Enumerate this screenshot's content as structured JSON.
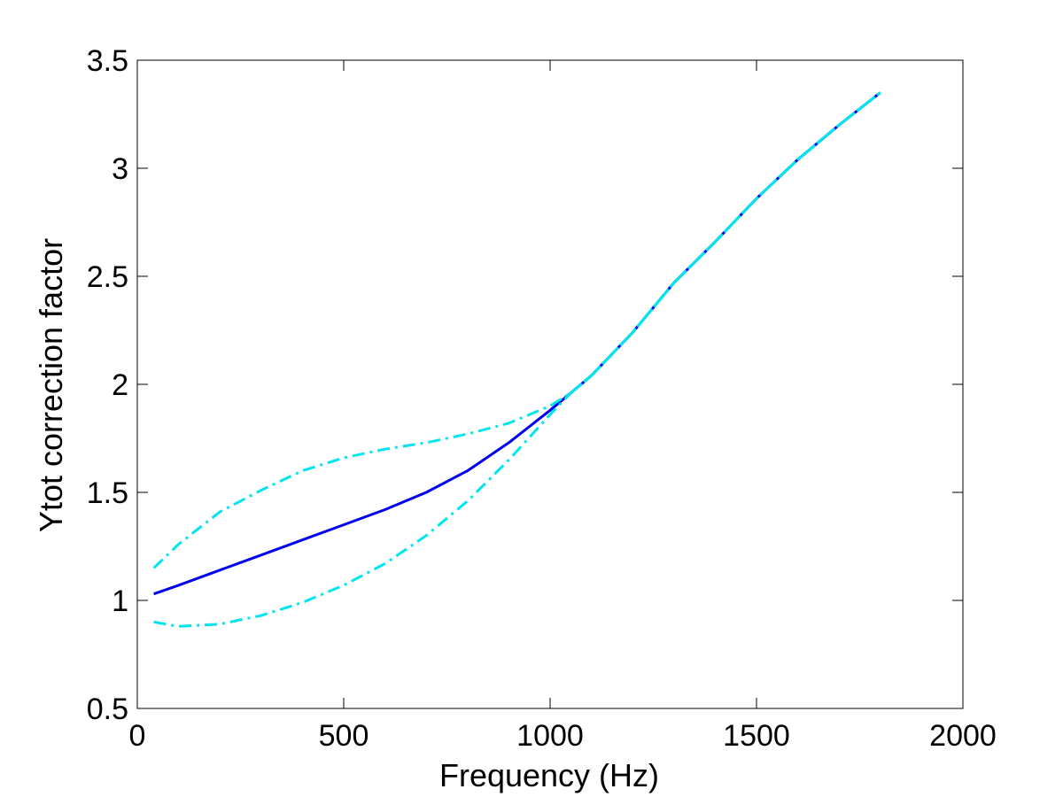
{
  "chart_data": {
    "type": "line",
    "xlabel": "Frequency (Hz)",
    "ylabel": "Ytot correction factor",
    "xlim": [
      0,
      2000
    ],
    "ylim": [
      0.5,
      3.5
    ],
    "xticks": [
      0,
      500,
      1000,
      1500,
      2000
    ],
    "yticks": [
      0.5,
      1,
      1.5,
      2,
      2.5,
      3,
      3.5
    ],
    "xtick_labels": [
      "0",
      "500",
      "1000",
      "1500",
      "2000"
    ],
    "ytick_labels": [
      "0.5",
      "1",
      "1.5",
      "2",
      "2.5",
      "3",
      "3.5"
    ],
    "grid": false,
    "series": [
      {
        "style": "solid",
        "color": "#0000ee",
        "x": [
          40,
          100,
          200,
          300,
          400,
          500,
          600,
          700,
          800,
          900,
          1000,
          1050,
          1100,
          1200,
          1300,
          1400,
          1500,
          1600,
          1700,
          1800
        ],
        "y": [
          1.03,
          1.07,
          1.14,
          1.21,
          1.28,
          1.35,
          1.42,
          1.5,
          1.6,
          1.73,
          1.88,
          1.96,
          2.04,
          2.24,
          2.47,
          2.66,
          2.86,
          3.04,
          3.2,
          3.35
        ]
      },
      {
        "style": "dashdot",
        "color": "#00e5ee",
        "x": [
          40,
          100,
          200,
          300,
          400,
          500,
          600,
          700,
          800,
          900,
          1000,
          1050,
          1100,
          1200,
          1300,
          1400,
          1500,
          1600,
          1700,
          1800
        ],
        "y": [
          1.15,
          1.26,
          1.41,
          1.51,
          1.6,
          1.66,
          1.7,
          1.73,
          1.77,
          1.82,
          1.9,
          1.96,
          2.04,
          2.24,
          2.47,
          2.66,
          2.86,
          3.04,
          3.2,
          3.35
        ]
      },
      {
        "style": "dashdot",
        "color": "#00e5ee",
        "x": [
          40,
          100,
          200,
          300,
          400,
          500,
          600,
          700,
          800,
          900,
          1000,
          1050,
          1100,
          1200,
          1300,
          1400,
          1500,
          1600,
          1700,
          1800
        ],
        "y": [
          0.9,
          0.88,
          0.89,
          0.93,
          0.99,
          1.07,
          1.17,
          1.3,
          1.46,
          1.65,
          1.86,
          1.96,
          2.04,
          2.24,
          2.47,
          2.66,
          2.86,
          3.04,
          3.2,
          3.35
        ]
      }
    ]
  }
}
